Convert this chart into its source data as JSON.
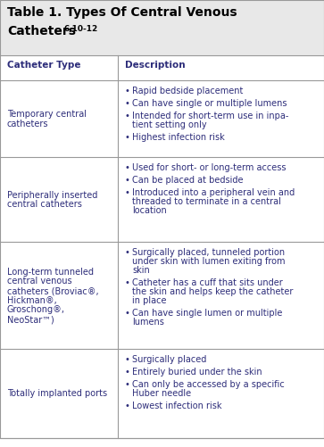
{
  "title_line1": "Table 1. Types Of Central Venous",
  "title_line2": "Catheters",
  "title_superscript": "6,10-12",
  "header_bg": "#e8e8e8",
  "title_color": "#000000",
  "col_header_color": "#2d2d7a",
  "cell_text_color": "#2d2d7a",
  "col_headers": [
    "Catheter Type",
    "Description"
  ],
  "col_split": 0.365,
  "rows": [
    {
      "type": [
        "Temporary central",
        "catheters"
      ],
      "bullets": [
        "Rapid bedside placement",
        "Can have single or multiple lumens",
        "Intended for short-term use in inpa-\ntient setting only",
        "Highest infection risk"
      ]
    },
    {
      "type": [
        "Peripherally inserted",
        "central catheters"
      ],
      "bullets": [
        "Used for short- or long-term access",
        "Can be placed at bedside",
        "Introduced into a peripheral vein and\nthreaded to terminate in a central\nlocation"
      ]
    },
    {
      "type": [
        "Long-term tunneled",
        "central venous",
        "catheters (Broviac®,",
        "Hickman®,",
        "Groschong®,",
        "NeoStar™)"
      ],
      "bullets": [
        "Surgically placed, tunneled portion\nunder skin with lumen exiting from\nskin",
        "Catheter has a cuff that sits under\nthe skin and helps keep the catheter\nin place",
        "Can have single lumen or multiple\nlumens"
      ]
    },
    {
      "type": [
        "Totally implanted ports"
      ],
      "bullets": [
        "Surgically placed",
        "Entirely buried under the skin",
        "Can only be accessed by a specific\nHuber needle",
        "Lowest infection risk"
      ]
    }
  ],
  "bg_color": "#ffffff",
  "line_color": "#999999",
  "font_size": 7.0,
  "title_font_size": 10.0,
  "header_font_size": 7.5
}
